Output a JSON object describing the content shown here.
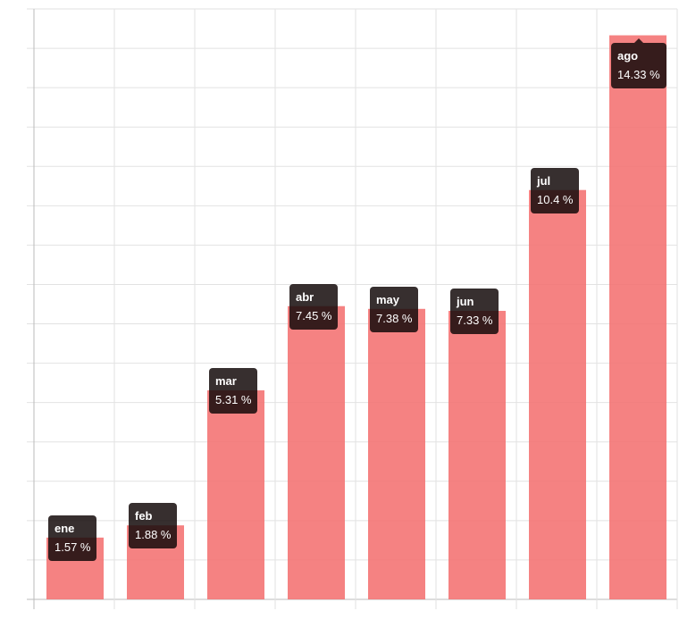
{
  "chart_data": {
    "type": "bar",
    "title": "",
    "xlabel": "",
    "ylabel": "",
    "categories": [
      "ene",
      "feb",
      "mar",
      "abr",
      "may",
      "jun",
      "jul",
      "ago"
    ],
    "values": [
      1.57,
      1.88,
      5.31,
      7.45,
      7.38,
      7.33,
      10.4,
      14.33
    ],
    "value_labels": [
      "1.57 %",
      "1.88 %",
      "5.31 %",
      "7.45 %",
      "7.38 %",
      "7.33 %",
      "10.4 %",
      "14.33 %"
    ],
    "ylim": [
      0,
      15
    ],
    "y_grid_step": 1,
    "grid": true,
    "bar_color": "#f47171",
    "tooltip_bg": "#140a0a",
    "legend": "none"
  }
}
